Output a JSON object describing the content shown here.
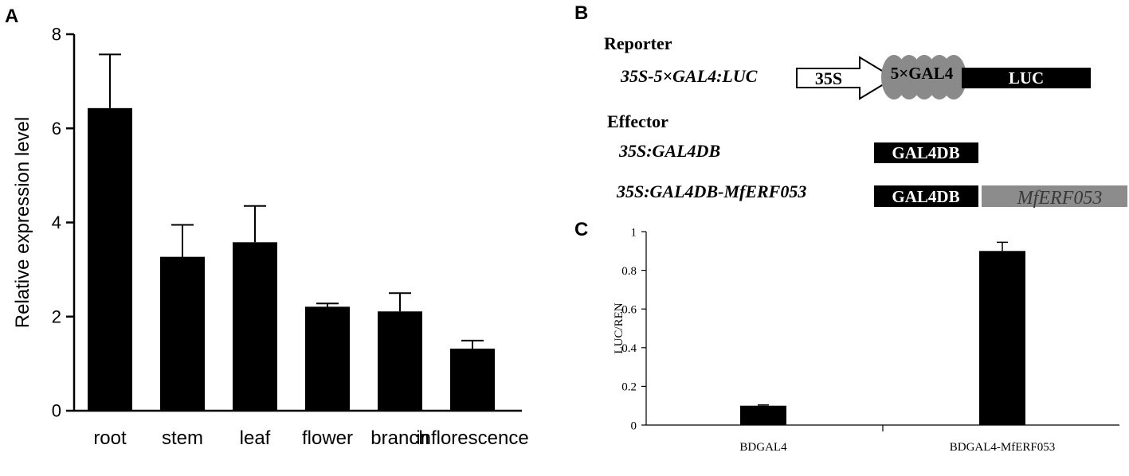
{
  "panels": {
    "a": "A",
    "b": "B",
    "c": "C"
  },
  "diagram": {
    "reporter_heading": "Reporter",
    "reporter_construct": "35S-5×GAL4:LUC",
    "promoter_label": "35S",
    "binding_sites_label": "5×GAL4",
    "luc_label": "LUC",
    "effector_heading": "Effector",
    "effector1_construct": "35S:GAL4DB",
    "effector1_box": "GAL4DB",
    "effector2_construct": "35S:GAL4DB-MfERF053",
    "effector2_box1": "GAL4DB",
    "effector2_box2": "MfERF053",
    "colors": {
      "box": "#000000",
      "mferf_box": "#8c8c8c",
      "ellipse": "#8a8a8a"
    }
  },
  "chart_data": [
    {
      "type": "bar",
      "categories": [
        "root",
        "stem",
        "leaf",
        "flower",
        "branch",
        "inflorescence"
      ],
      "values": [
        6.43,
        3.27,
        3.58,
        2.21,
        2.11,
        1.32
      ],
      "errors": [
        1.14,
        0.68,
        0.77,
        0.07,
        0.39,
        0.17
      ],
      "ylabel": "Relative expression level",
      "ylim": [
        0,
        8
      ],
      "yticks": [
        "0",
        "2",
        "4",
        "6",
        "8"
      ],
      "grid": false,
      "color": "#000000"
    },
    {
      "type": "bar",
      "categories": [
        "BDGAL4",
        "BDGAL4-MfERF053"
      ],
      "values": [
        0.1,
        0.9
      ],
      "errors": [
        0.004,
        0.045
      ],
      "ylabel": "LUC/REN",
      "ylim": [
        0,
        1
      ],
      "yticks": [
        "0",
        "0.2",
        "0.4",
        "0.6",
        "0.8",
        "1"
      ],
      "grid": false,
      "color": "#000000"
    }
  ]
}
